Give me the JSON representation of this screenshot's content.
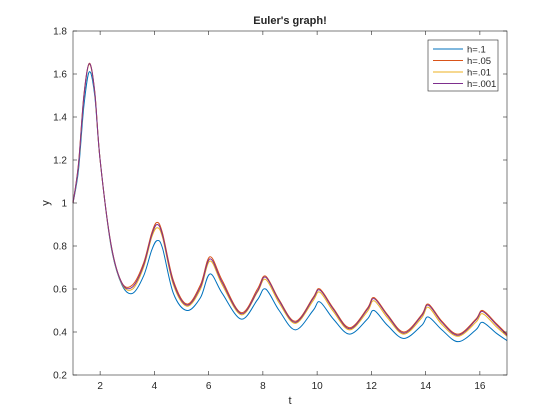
{
  "chart_data": {
    "type": "line",
    "title": "Euler's graph!",
    "xlabel": "t",
    "ylabel": "y",
    "xlim": [
      1,
      17
    ],
    "ylim": [
      0.2,
      1.8
    ],
    "xticks": [
      2,
      4,
      6,
      8,
      10,
      12,
      14,
      16
    ],
    "yticks": [
      0.2,
      0.4,
      0.6,
      0.8,
      1,
      1.2,
      1.4,
      1.6,
      1.8
    ],
    "xtick_labels": [
      "2",
      "4",
      "6",
      "8",
      "10",
      "12",
      "14",
      "16"
    ],
    "ytick_labels": [
      "0.2",
      "0.4",
      "0.6",
      "0.8",
      "1",
      "1.2",
      "1.4",
      "1.6",
      "1.8"
    ],
    "grid": false,
    "legend_position": "top-right",
    "series": [
      {
        "name": "h=.1",
        "color": "#0072BD",
        "x": [
          1,
          1.2,
          1.4,
          1.6,
          1.8,
          2,
          2.4,
          2.8,
          3.2,
          3.6,
          3.9,
          4.1,
          4.3,
          4.7,
          5.2,
          5.7,
          6.05,
          6.5,
          7.2,
          7.8,
          8.1,
          8.6,
          9.2,
          9.85,
          10.1,
          10.6,
          11.2,
          11.85,
          12.1,
          12.6,
          13.2,
          13.85,
          14.1,
          14.6,
          15.2,
          15.85,
          16.1,
          16.6,
          17
        ],
        "y": [
          1,
          1.15,
          1.45,
          1.61,
          1.5,
          1.2,
          0.8,
          0.62,
          0.58,
          0.66,
          0.78,
          0.825,
          0.79,
          0.58,
          0.5,
          0.56,
          0.67,
          0.58,
          0.46,
          0.55,
          0.6,
          0.5,
          0.41,
          0.5,
          0.54,
          0.46,
          0.39,
          0.46,
          0.5,
          0.43,
          0.37,
          0.43,
          0.47,
          0.41,
          0.355,
          0.41,
          0.445,
          0.395,
          0.36
        ]
      },
      {
        "name": "h=.05",
        "color": "#D95319",
        "x": [
          1,
          1.2,
          1.4,
          1.6,
          1.8,
          2,
          2.4,
          2.8,
          3.2,
          3.6,
          3.9,
          4.1,
          4.3,
          4.7,
          5.2,
          5.7,
          6.05,
          6.5,
          7.2,
          7.8,
          8.1,
          8.6,
          9.2,
          9.85,
          10.1,
          10.6,
          11.2,
          11.85,
          12.1,
          12.6,
          13.2,
          13.85,
          14.1,
          14.6,
          15.2,
          15.85,
          16.1,
          16.6,
          17
        ],
        "y": [
          1,
          1.18,
          1.5,
          1.65,
          1.52,
          1.2,
          0.81,
          0.63,
          0.62,
          0.72,
          0.86,
          0.91,
          0.86,
          0.64,
          0.53,
          0.62,
          0.75,
          0.64,
          0.49,
          0.6,
          0.66,
          0.55,
          0.45,
          0.56,
          0.6,
          0.51,
          0.42,
          0.51,
          0.56,
          0.48,
          0.4,
          0.48,
          0.53,
          0.45,
          0.39,
          0.46,
          0.5,
          0.44,
          0.39
        ]
      },
      {
        "name": "h=.01",
        "color": "#EDB120",
        "x": [
          1,
          1.2,
          1.4,
          1.6,
          1.8,
          2,
          2.4,
          2.8,
          3.2,
          3.6,
          3.9,
          4.1,
          4.3,
          4.7,
          5.2,
          5.7,
          6.05,
          6.5,
          7.2,
          7.8,
          8.1,
          8.6,
          9.2,
          9.85,
          10.1,
          10.6,
          11.2,
          11.85,
          12.1,
          12.6,
          13.2,
          13.85,
          14.1,
          14.6,
          15.2,
          15.85,
          16.1,
          16.6,
          17
        ],
        "y": [
          1,
          1.17,
          1.49,
          1.645,
          1.515,
          1.2,
          0.805,
          0.625,
          0.6,
          0.7,
          0.84,
          0.885,
          0.84,
          0.62,
          0.52,
          0.6,
          0.73,
          0.62,
          0.48,
          0.585,
          0.645,
          0.535,
          0.44,
          0.545,
          0.585,
          0.495,
          0.41,
          0.495,
          0.545,
          0.465,
          0.39,
          0.465,
          0.515,
          0.435,
          0.38,
          0.445,
          0.485,
          0.425,
          0.38
        ]
      },
      {
        "name": "h=.001",
        "color": "#7E2F8E",
        "x": [
          1,
          1.2,
          1.4,
          1.6,
          1.8,
          2,
          2.4,
          2.8,
          3.2,
          3.6,
          3.9,
          4.1,
          4.3,
          4.7,
          5.2,
          5.7,
          6.05,
          6.5,
          7.2,
          7.8,
          8.1,
          8.6,
          9.2,
          9.85,
          10.1,
          10.6,
          11.2,
          11.85,
          12.1,
          12.6,
          13.2,
          13.85,
          14.1,
          14.6,
          15.2,
          15.85,
          16.1,
          16.6,
          17
        ],
        "y": [
          1,
          1.175,
          1.495,
          1.648,
          1.518,
          1.2,
          0.808,
          0.628,
          0.61,
          0.71,
          0.85,
          0.9,
          0.85,
          0.63,
          0.525,
          0.61,
          0.74,
          0.63,
          0.485,
          0.59,
          0.655,
          0.545,
          0.445,
          0.555,
          0.595,
          0.505,
          0.415,
          0.505,
          0.555,
          0.475,
          0.395,
          0.475,
          0.525,
          0.445,
          0.385,
          0.455,
          0.495,
          0.435,
          0.385
        ]
      }
    ]
  }
}
